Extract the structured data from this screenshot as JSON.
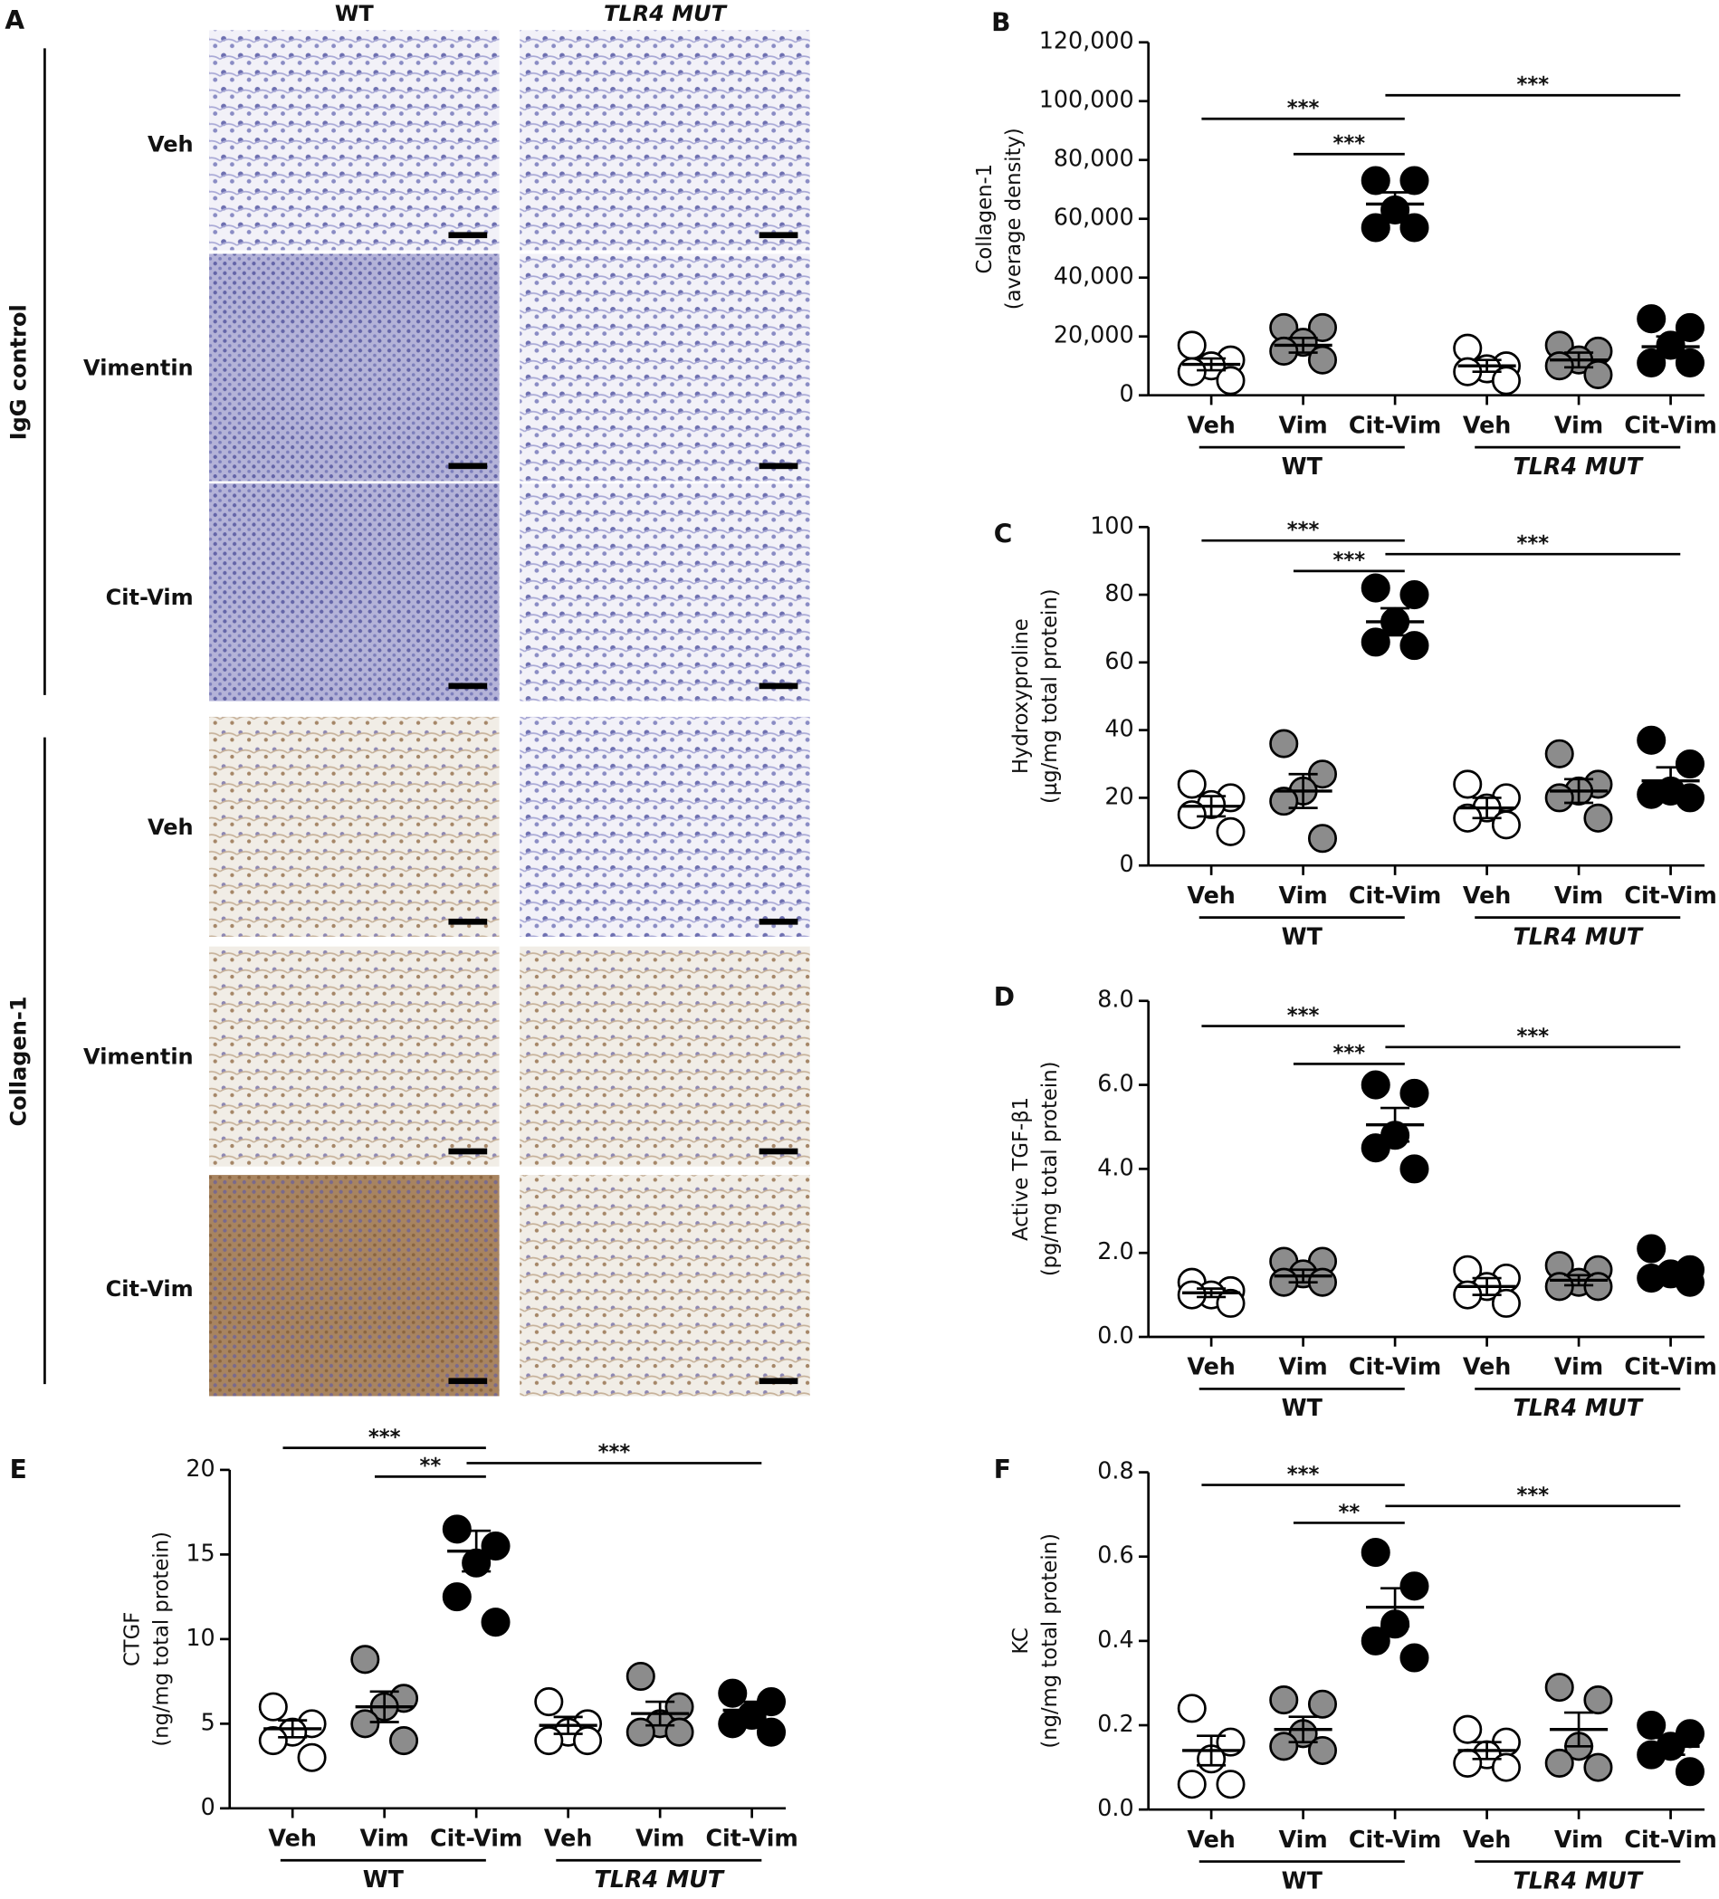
{
  "panel_a": {
    "label": "A",
    "columns": [
      "WT",
      "TLR4 MUT"
    ],
    "groups": [
      "IgG control",
      "Collagen-1"
    ],
    "rows": [
      "Veh",
      "Vimentin",
      "Cit-Vim"
    ]
  },
  "chart_data": [
    {
      "type": "dotplot",
      "panel": "B",
      "y_label": [
        "Collagen-1",
        "(average density)"
      ],
      "categories": [
        "Veh",
        "Vim",
        "Cit-Vim",
        "Veh",
        "Vim",
        "Cit-Vim"
      ],
      "groups": [
        "WT",
        "TLR4 MUT"
      ],
      "colors": [
        "#ffffff",
        "#8c8c8c",
        "#000000",
        "#ffffff",
        "#8c8c8c",
        "#000000"
      ],
      "values": [
        [
          17000,
          12000,
          10000,
          8000,
          5000
        ],
        [
          23000,
          23000,
          18000,
          15000,
          12000
        ],
        [
          73000,
          73000,
          63000,
          57000,
          57000
        ],
        [
          16000,
          10000,
          9000,
          8000,
          5000
        ],
        [
          17000,
          15000,
          12000,
          10000,
          7000
        ],
        [
          26000,
          23000,
          17000,
          11000,
          11000
        ]
      ],
      "means": [
        10500,
        17000,
        65000,
        10000,
        12000,
        16500
      ],
      "sems": [
        2000,
        2500,
        4000,
        2000,
        2500,
        3500
      ],
      "ylim": [
        0,
        120000
      ],
      "yticks": [
        0,
        {
          "value": 20000,
          "label": "20,000"
        },
        {
          "value": 40000,
          "label": "40,000"
        },
        {
          "value": 60000,
          "label": "60,000"
        },
        {
          "value": 80000,
          "label": "80,000"
        },
        {
          "value": 100000,
          "label": "100,000"
        },
        {
          "value": 120000,
          "label": "120,000"
        }
      ],
      "significance": [
        {
          "from": 0,
          "to": 2,
          "label": "***",
          "y": 94000
        },
        {
          "from": 1,
          "to": 2,
          "label": "***",
          "y": 82000
        },
        {
          "from": 2,
          "to": 5,
          "label": "***",
          "y": 102000
        }
      ]
    },
    {
      "type": "dotplot",
      "panel": "C",
      "y_label": [
        "Hydroxyproline",
        "(µg/mg total protein)"
      ],
      "categories": [
        "Veh",
        "Vim",
        "Cit-Vim",
        "Veh",
        "Vim",
        "Cit-Vim"
      ],
      "groups": [
        "WT",
        "TLR4 MUT"
      ],
      "colors": [
        "#ffffff",
        "#8c8c8c",
        "#000000",
        "#ffffff",
        "#8c8c8c",
        "#000000"
      ],
      "values": [
        [
          24,
          20,
          18,
          15,
          10
        ],
        [
          36,
          27,
          22,
          19,
          8
        ],
        [
          82,
          80,
          72,
          66,
          65
        ],
        [
          24,
          20,
          17,
          14,
          12
        ],
        [
          33,
          24,
          22,
          20,
          14
        ],
        [
          37,
          30,
          22,
          21,
          20
        ]
      ],
      "means": [
        17.5,
        22,
        72,
        17,
        22,
        25
      ],
      "sems": [
        3,
        5,
        4,
        3,
        3.5,
        4
      ],
      "ylim": [
        0,
        100
      ],
      "yticks": [
        0,
        20,
        40,
        60,
        80,
        100
      ],
      "significance": [
        {
          "from": 0,
          "to": 2,
          "label": "***",
          "y": 96
        },
        {
          "from": 1,
          "to": 2,
          "label": "***",
          "y": 87
        },
        {
          "from": 2,
          "to": 5,
          "label": "***",
          "y": 92
        }
      ]
    },
    {
      "type": "dotplot",
      "panel": "D",
      "y_label": [
        "Active TGF-β1",
        "(pg/mg total protein)"
      ],
      "categories": [
        "Veh",
        "Vim",
        "Cit-Vim",
        "Veh",
        "Vim",
        "Cit-Vim"
      ],
      "groups": [
        "WT",
        "TLR4 MUT"
      ],
      "colors": [
        "#ffffff",
        "#8c8c8c",
        "#000000",
        "#ffffff",
        "#8c8c8c",
        "#000000"
      ],
      "values": [
        [
          1.3,
          1.1,
          1.0,
          1.0,
          0.8
        ],
        [
          1.8,
          1.8,
          1.5,
          1.3,
          1.3
        ],
        [
          6.0,
          5.8,
          4.8,
          4.5,
          4.0
        ],
        [
          1.6,
          1.4,
          1.2,
          1.0,
          0.8
        ],
        [
          1.7,
          1.6,
          1.3,
          1.2,
          1.2
        ],
        [
          2.1,
          1.6,
          1.5,
          1.4,
          1.3
        ]
      ],
      "means": [
        1.05,
        1.45,
        5.05,
        1.2,
        1.35,
        1.5
      ],
      "sems": [
        0.1,
        0.15,
        0.4,
        0.2,
        0.12,
        0.15
      ],
      "ylim": [
        0,
        8
      ],
      "yticks": [
        {
          "value": 0,
          "label": "0.0"
        },
        {
          "value": 2,
          "label": "2.0"
        },
        {
          "value": 4,
          "label": "4.0"
        },
        {
          "value": 6,
          "label": "6.0"
        },
        {
          "value": 8,
          "label": "8.0"
        }
      ],
      "significance": [
        {
          "from": 0,
          "to": 2,
          "label": "***",
          "y": 7.4
        },
        {
          "from": 1,
          "to": 2,
          "label": "***",
          "y": 6.5
        },
        {
          "from": 2,
          "to": 5,
          "label": "***",
          "y": 6.9
        }
      ]
    },
    {
      "type": "dotplot",
      "panel": "E",
      "y_label": [
        "CTGF",
        "(ng/mg total protein)"
      ],
      "categories": [
        "Veh",
        "Vim",
        "Cit-Vim",
        "Veh",
        "Vim",
        "Cit-Vim"
      ],
      "groups": [
        "WT",
        "TLR4 MUT"
      ],
      "colors": [
        "#ffffff",
        "#8c8c8c",
        "#000000",
        "#ffffff",
        "#8c8c8c",
        "#000000"
      ],
      "values": [
        [
          6.0,
          5.0,
          4.5,
          4.0,
          3.0
        ],
        [
          8.8,
          6.5,
          6.0,
          5.0,
          4.0
        ],
        [
          16.5,
          15.5,
          14.5,
          12.5,
          11.0
        ],
        [
          6.3,
          5.0,
          4.5,
          4.0,
          4.0
        ],
        [
          7.8,
          6.0,
          5.0,
          4.5,
          4.5
        ],
        [
          6.8,
          6.3,
          5.5,
          5.0,
          4.5
        ]
      ],
      "means": [
        4.7,
        6.0,
        15.2,
        4.9,
        5.6,
        5.8
      ],
      "sems": [
        0.5,
        0.9,
        1.2,
        0.5,
        0.7,
        0.5
      ],
      "ylim": [
        0,
        20
      ],
      "yticks": [
        0,
        5,
        10,
        15,
        20
      ],
      "significance": [
        {
          "from": 0,
          "to": 2,
          "label": "***",
          "y": 21.3
        },
        {
          "from": 1,
          "to": 2,
          "label": "**",
          "y": 19.6
        },
        {
          "from": 2,
          "to": 5,
          "label": "***",
          "y": 20.4
        }
      ]
    },
    {
      "type": "dotplot",
      "panel": "F",
      "y_label": [
        "KC",
        "(ng/mg total protein)"
      ],
      "categories": [
        "Veh",
        "Vim",
        "Cit-Vim",
        "Veh",
        "Vim",
        "Cit-Vim"
      ],
      "groups": [
        "WT",
        "TLR4 MUT"
      ],
      "colors": [
        "#ffffff",
        "#8c8c8c",
        "#000000",
        "#ffffff",
        "#8c8c8c",
        "#000000"
      ],
      "values": [
        [
          0.24,
          0.16,
          0.12,
          0.06,
          0.06
        ],
        [
          0.26,
          0.25,
          0.18,
          0.15,
          0.14
        ],
        [
          0.61,
          0.53,
          0.44,
          0.4,
          0.36
        ],
        [
          0.19,
          0.16,
          0.13,
          0.11,
          0.1
        ],
        [
          0.29,
          0.26,
          0.15,
          0.11,
          0.1
        ],
        [
          0.2,
          0.18,
          0.15,
          0.13,
          0.09
        ]
      ],
      "means": [
        0.14,
        0.19,
        0.48,
        0.14,
        0.19,
        0.15
      ],
      "sems": [
        0.035,
        0.03,
        0.045,
        0.02,
        0.04,
        0.02
      ],
      "ylim": [
        0,
        0.8
      ],
      "yticks": [
        {
          "value": 0,
          "label": "0.0"
        },
        0.2,
        0.4,
        0.6,
        0.8
      ],
      "significance": [
        {
          "from": 0,
          "to": 2,
          "label": "***",
          "y": 0.77
        },
        {
          "from": 1,
          "to": 2,
          "label": "**",
          "y": 0.68
        },
        {
          "from": 2,
          "to": 5,
          "label": "***",
          "y": 0.72
        }
      ]
    }
  ]
}
